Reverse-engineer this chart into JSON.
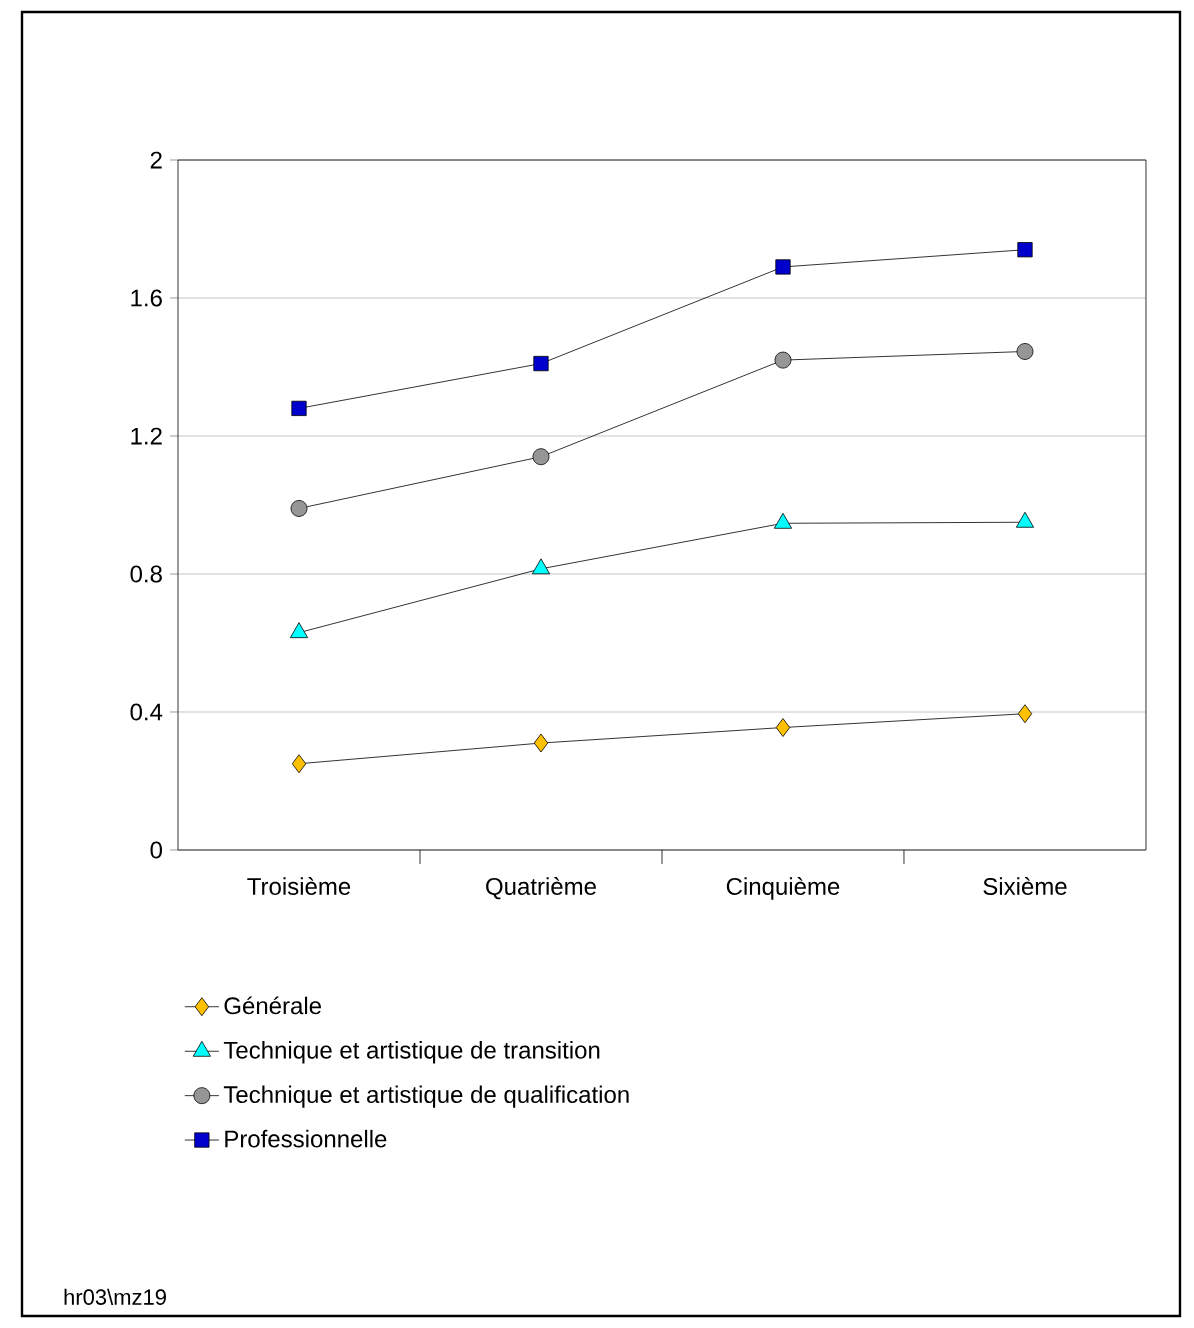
{
  "chart_data": {
    "type": "line",
    "categories": [
      "Troisième",
      "Quatrième",
      "Cinquième",
      "Sixième"
    ],
    "series": [
      {
        "name": "Générale",
        "color": "#ffc000",
        "marker": "diamond",
        "values": [
          0.25,
          0.31,
          0.355,
          0.395
        ]
      },
      {
        "name": "Technique et artistique de transition",
        "color": "#00ffff",
        "marker": "triangle",
        "values": [
          0.63,
          0.815,
          0.947,
          0.95
        ]
      },
      {
        "name": "Technique et artistique de qualification",
        "color": "#969696",
        "marker": "circle",
        "values": [
          0.99,
          1.14,
          1.42,
          1.445
        ]
      },
      {
        "name": "Professionnelle",
        "color": "#0000cc",
        "marker": "square",
        "values": [
          1.28,
          1.41,
          1.69,
          1.74
        ]
      }
    ],
    "ylim": [
      0,
      2
    ],
    "yticks": [
      0,
      0.4,
      0.8,
      1.2,
      1.6,
      2
    ],
    "grid": "y",
    "legend": "bottom",
    "line_style": "solid",
    "annotations": [
      "hr03\\mz19"
    ]
  }
}
